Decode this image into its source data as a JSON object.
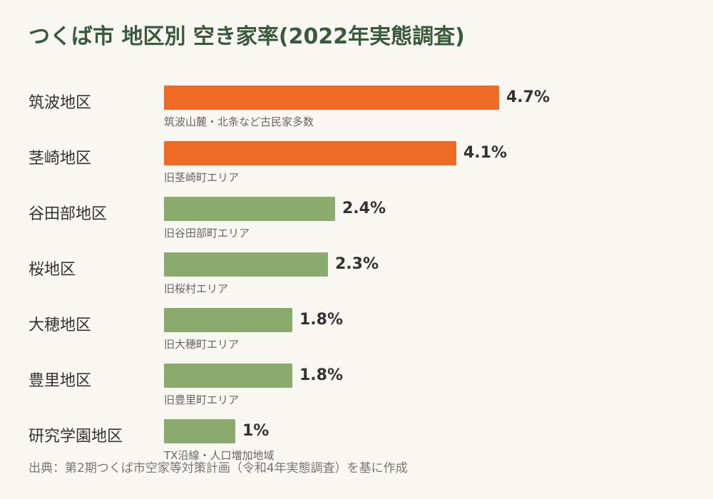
{
  "title": "つくば市 地区別 空き家率(2022年実態調査)",
  "source": "出典：第2期つくば市空家等対策計画（令和4年実態調査）を基に作成",
  "colors": {
    "background": "#f8f7f2",
    "title": "#3b5a3d",
    "highlight": "#ee6b26",
    "normal": "#8aab6d"
  },
  "chart_data": {
    "type": "bar",
    "orientation": "horizontal",
    "xlim": [
      0,
      5
    ],
    "categories": [
      "筑波地区",
      "茎崎地区",
      "谷田部地区",
      "桜地区",
      "大穂地区",
      "豊里地区",
      "研究学園地区"
    ],
    "values": [
      4.7,
      4.1,
      2.4,
      2.3,
      1.8,
      1.8,
      1.0
    ],
    "value_labels": [
      "4.7%",
      "4.1%",
      "2.4%",
      "2.3%",
      "1.8%",
      "1.8%",
      "1%"
    ],
    "notes": [
      "筑波山麓・北条など古民家多数",
      "旧茎崎町エリア",
      "旧谷田部町エリア",
      "旧桜村エリア",
      "旧大穂町エリア",
      "旧豊里町エリア",
      "TX沿線・人口増加地域"
    ],
    "highlighted": [
      true,
      true,
      false,
      false,
      false,
      false,
      false
    ]
  }
}
